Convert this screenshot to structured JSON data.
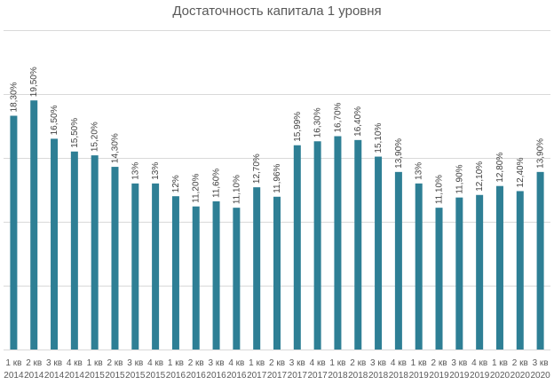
{
  "chart_data": {
    "type": "bar",
    "title": "Достаточность капитала 1 уровня",
    "xlabel": "",
    "ylabel": "",
    "ylim": [
      0,
      25
    ],
    "grid": true,
    "legend": "none",
    "bar_color": "#2E7F95",
    "grid_color": "#D9D9D9",
    "categories": [
      {
        "q": "1 кв",
        "y": "2014"
      },
      {
        "q": "2 кв",
        "y": "2014"
      },
      {
        "q": "3 кв",
        "y": "2014"
      },
      {
        "q": "4 кв",
        "y": "2014"
      },
      {
        "q": "1 кв",
        "y": "2015"
      },
      {
        "q": "2 кв",
        "y": "2015"
      },
      {
        "q": "3 кв",
        "y": "2015"
      },
      {
        "q": "4 кв",
        "y": "2015"
      },
      {
        "q": "1 кв",
        "y": "2016"
      },
      {
        "q": "2 кв",
        "y": "2016"
      },
      {
        "q": "3 кв",
        "y": "2016"
      },
      {
        "q": "4 кв",
        "y": "2016"
      },
      {
        "q": "1 кв",
        "y": "2017"
      },
      {
        "q": "2 кв",
        "y": "2017"
      },
      {
        "q": "3 кв",
        "y": "2017"
      },
      {
        "q": "4 кв",
        "y": "2017"
      },
      {
        "q": "1 кв",
        "y": "2018"
      },
      {
        "q": "2 кв",
        "y": "2018"
      },
      {
        "q": "3 кв",
        "y": "2018"
      },
      {
        "q": "4 кв",
        "y": "2018"
      },
      {
        "q": "1 кв",
        "y": "2019"
      },
      {
        "q": "2 кв",
        "y": "2019"
      },
      {
        "q": "3 кв",
        "y": "2019"
      },
      {
        "q": "4 кв",
        "y": "2019"
      },
      {
        "q": "1 кв",
        "y": "2020"
      },
      {
        "q": "2 кв",
        "y": "2020"
      },
      {
        "q": "3 кв",
        "y": "2020"
      }
    ],
    "values": [
      18.3,
      19.5,
      16.5,
      15.5,
      15.2,
      14.3,
      13,
      13,
      12,
      11.2,
      11.6,
      11.1,
      12.7,
      11.96,
      15.99,
      16.3,
      16.7,
      16.4,
      15.1,
      13.9,
      13,
      11.1,
      11.9,
      12.1,
      12.8,
      12.4,
      13.9
    ],
    "labels": [
      "18,30%",
      "19,50%",
      "16,50%",
      "15,50%",
      "15,20%",
      "14,30%",
      "13%",
      "13%",
      "12%",
      "11,20%",
      "11,60%",
      "11,10%",
      "12,70%",
      "11,96%",
      "15,99%",
      "16,30%",
      "16,70%",
      "16,40%",
      "15,10%",
      "13,90%",
      "13%",
      "11,10%",
      "11,90%",
      "12,10%",
      "12,80%",
      "12,40%",
      "13,90%"
    ]
  }
}
